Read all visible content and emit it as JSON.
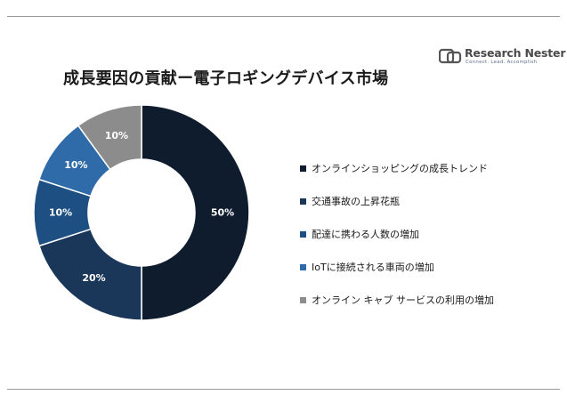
{
  "brand": {
    "name": "Research Nester",
    "tagline": "Connect. Lead. Accomplish",
    "icon": "research-nester-logo-icon"
  },
  "chart_data": {
    "type": "pie",
    "variant": "donut",
    "title": "成長要因の貢献ー電子ロギングデバイス市場",
    "legend_position": "right",
    "slices": [
      {
        "name": "オンラインショッピングの成長トレンド",
        "value": 50,
        "label": "50%",
        "color": "#0f1c2e"
      },
      {
        "name": "交通事故の上昇花瓶",
        "value": 20,
        "label": "20%",
        "color": "#1a3759"
      },
      {
        "name": "配達に携わる人数の増加",
        "value": 10,
        "label": "10%",
        "color": "#1d4f82"
      },
      {
        "name": "IoTに接続される車両の増加",
        "value": 10,
        "label": "10%",
        "color": "#2e6ba8"
      },
      {
        "name": "オンライン キャブ サービスの利用の増加",
        "value": 10,
        "label": "10%",
        "color": "#8c8c8c"
      }
    ]
  }
}
